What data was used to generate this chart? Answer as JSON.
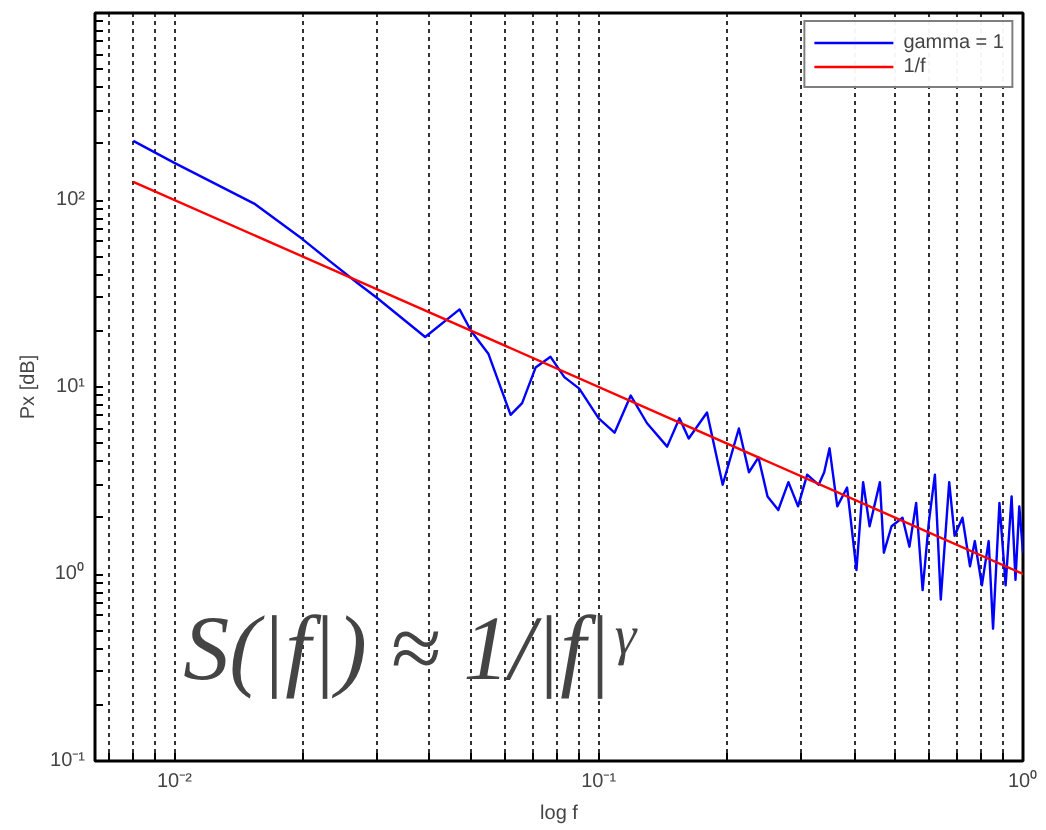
{
  "chart_data": {
    "type": "line",
    "xlabel": "log f",
    "ylabel": "Px [dB]",
    "log": "xy",
    "grid": "x",
    "legend": "top right",
    "line_style": "solid",
    "marker": "none",
    "xlim": [
      0.0065,
      1
    ],
    "ylim": [
      0.1,
      1000
    ],
    "xticks": [
      {
        "value": 0.007,
        "label": null
      },
      {
        "value": 0.008,
        "label": null
      },
      {
        "value": 0.009,
        "label": null
      },
      {
        "value": 0.01,
        "label": "10⁻²"
      },
      {
        "value": 0.02,
        "label": null
      },
      {
        "value": 0.03,
        "label": null
      },
      {
        "value": 0.04,
        "label": null
      },
      {
        "value": 0.05,
        "label": null
      },
      {
        "value": 0.06,
        "label": null
      },
      {
        "value": 0.07,
        "label": null
      },
      {
        "value": 0.08,
        "label": null
      },
      {
        "value": 0.09,
        "label": null
      },
      {
        "value": 0.1,
        "label": "10⁻¹"
      },
      {
        "value": 0.2,
        "label": null
      },
      {
        "value": 0.3,
        "label": null
      },
      {
        "value": 0.4,
        "label": null
      },
      {
        "value": 0.5,
        "label": null
      },
      {
        "value": 0.6,
        "label": null
      },
      {
        "value": 0.7,
        "label": null
      },
      {
        "value": 0.8,
        "label": null
      },
      {
        "value": 0.9,
        "label": null
      },
      {
        "value": 1,
        "label": "10⁰"
      }
    ],
    "yticks": [
      {
        "value": 0.1,
        "label": "10⁻¹"
      },
      {
        "value": 0.2,
        "label": null
      },
      {
        "value": 0.3,
        "label": null
      },
      {
        "value": 0.4,
        "label": null
      },
      {
        "value": 0.5,
        "label": null
      },
      {
        "value": 0.6,
        "label": null
      },
      {
        "value": 0.7,
        "label": null
      },
      {
        "value": 0.8,
        "label": null
      },
      {
        "value": 0.9,
        "label": null
      },
      {
        "value": 1,
        "label": "10⁰"
      },
      {
        "value": 2,
        "label": null
      },
      {
        "value": 3,
        "label": null
      },
      {
        "value": 4,
        "label": null
      },
      {
        "value": 5,
        "label": null
      },
      {
        "value": 6,
        "label": null
      },
      {
        "value": 7,
        "label": null
      },
      {
        "value": 8,
        "label": null
      },
      {
        "value": 9,
        "label": null
      },
      {
        "value": 10,
        "label": "10¹"
      },
      {
        "value": 20,
        "label": null
      },
      {
        "value": 30,
        "label": null
      },
      {
        "value": 40,
        "label": null
      },
      {
        "value": 50,
        "label": null
      },
      {
        "value": 60,
        "label": null
      },
      {
        "value": 70,
        "label": null
      },
      {
        "value": 80,
        "label": null
      },
      {
        "value": 90,
        "label": null
      },
      {
        "value": 100,
        "label": "10²"
      },
      {
        "value": 200,
        "label": null
      },
      {
        "value": 300,
        "label": null
      },
      {
        "value": 400,
        "label": null
      },
      {
        "value": 500,
        "label": null
      },
      {
        "value": 600,
        "label": null
      },
      {
        "value": 700,
        "label": null
      },
      {
        "value": 800,
        "label": null
      },
      {
        "value": 900,
        "label": null
      }
    ],
    "series": [
      {
        "name": "gamma = 1",
        "color": "#0000ff",
        "x": [
          0.008,
          0.01,
          0.0155,
          0.02,
          0.023,
          0.027,
          0.03,
          0.039,
          0.047,
          0.05,
          0.055,
          0.062,
          0.066,
          0.071,
          0.077,
          0.083,
          0.09,
          0.1,
          0.109,
          0.119,
          0.13,
          0.145,
          0.155,
          0.163,
          0.18,
          0.196,
          0.214,
          0.226,
          0.238,
          0.25,
          0.265,
          0.28,
          0.295,
          0.31,
          0.33,
          0.34,
          0.35,
          0.365,
          0.385,
          0.405,
          0.42,
          0.435,
          0.46,
          0.47,
          0.49,
          0.52,
          0.54,
          0.56,
          0.58,
          0.6,
          0.62,
          0.64,
          0.67,
          0.69,
          0.72,
          0.75,
          0.77,
          0.8,
          0.83,
          0.85,
          0.88,
          0.91,
          0.94,
          0.96,
          0.98,
          1.0
        ],
        "values": [
          207,
          158,
          95,
          62,
          48,
          36,
          30,
          18.5,
          26,
          20,
          15,
          7.1,
          8.2,
          12.7,
          14.5,
          11.3,
          9.8,
          6.8,
          5.7,
          9.0,
          6.4,
          4.8,
          6.8,
          5.3,
          7.3,
          3.0,
          6.0,
          3.5,
          4.2,
          2.6,
          2.2,
          3.1,
          2.3,
          3.4,
          3.0,
          3.5,
          4.7,
          2.3,
          2.9,
          1.05,
          3.1,
          1.8,
          3.1,
          1.3,
          1.8,
          2.0,
          1.4,
          2.4,
          0.82,
          1.9,
          3.4,
          0.73,
          3.1,
          1.6,
          2.0,
          1.1,
          1.5,
          0.87,
          1.5,
          0.51,
          2.4,
          0.87,
          2.6,
          0.93,
          2.3,
          1.3
        ]
      },
      {
        "name": "1/f",
        "color": "#ff0000",
        "x": [
          0.008,
          1
        ],
        "values": [
          125,
          1
        ]
      }
    ],
    "annotations": [
      "S(|f|) ≈ 1/|f|ᵞ"
    ]
  }
}
